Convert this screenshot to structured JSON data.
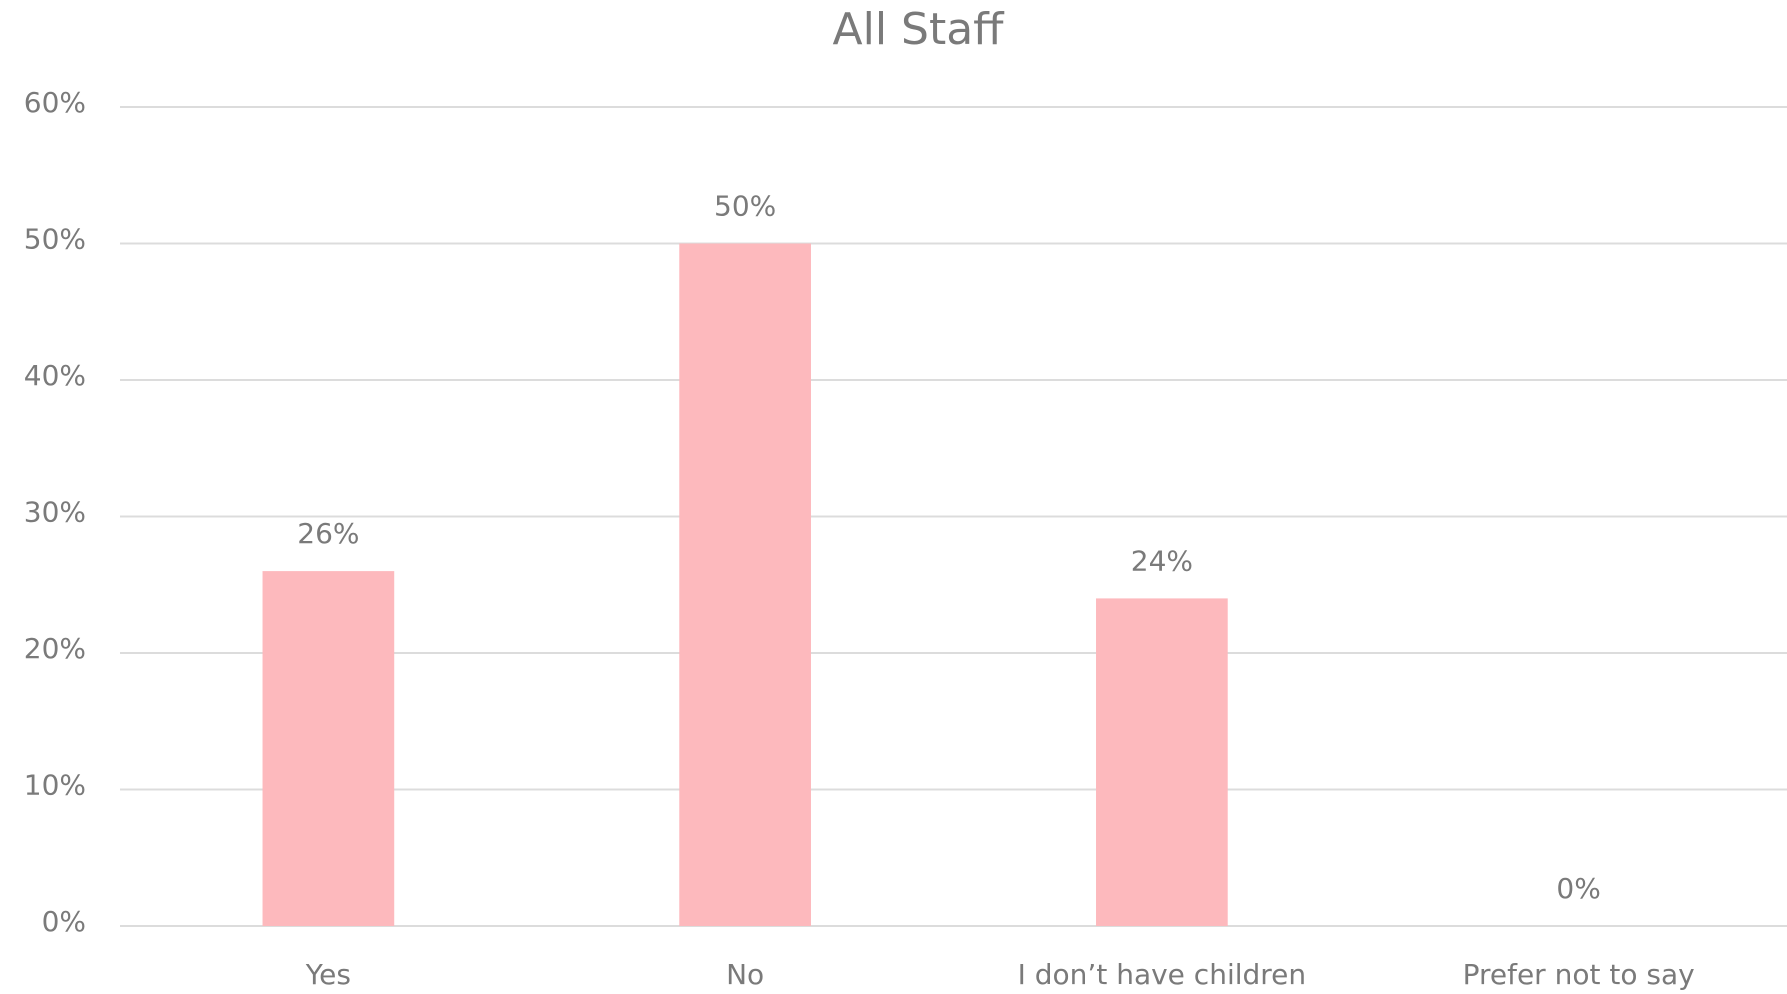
{
  "chart_data": {
    "type": "bar",
    "title": "All Staff",
    "categories": [
      "Yes",
      "No",
      "I don’t have children",
      "Prefer not to say"
    ],
    "values": [
      26,
      50,
      24,
      0
    ],
    "value_labels": [
      "26%",
      "50%",
      "24%",
      "0%"
    ],
    "color": "#fdb9bd",
    "ylim": [
      0,
      60
    ],
    "yticks": [
      {
        "value": 0,
        "label": "0%"
      },
      {
        "value": 10,
        "label": "10%"
      },
      {
        "value": 20,
        "label": "20%"
      },
      {
        "value": 30,
        "label": "30%"
      },
      {
        "value": 40,
        "label": "40%"
      },
      {
        "value": 50,
        "label": "50%"
      },
      {
        "value": 60,
        "label": "60%"
      }
    ],
    "grid": true
  }
}
